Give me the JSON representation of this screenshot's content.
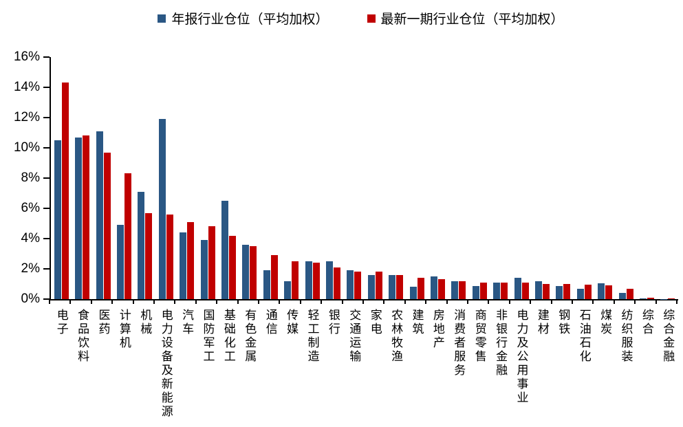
{
  "chart_data": {
    "type": "bar",
    "title": "",
    "categories": [
      "电子",
      "食品饮料",
      "医药",
      "计算机",
      "机械",
      "电力设备及新能源",
      "汽车",
      "国防军工",
      "基础化工",
      "有色金属",
      "通信",
      "传媒",
      "轻工制造",
      "银行",
      "交通运输",
      "家电",
      "农林牧渔",
      "建筑",
      "房地产",
      "消费者服务",
      "商贸零售",
      "非银行金融",
      "电力及公用事业",
      "建材",
      "钢铁",
      "石油石化",
      "煤炭",
      "纺织服装",
      "综合",
      "综合金融"
    ],
    "series": [
      {
        "name": "年报行业仓位（平均加权）",
        "color": "#2A5784",
        "values": [
          10.5,
          10.7,
          11.1,
          4.9,
          7.1,
          11.9,
          4.4,
          3.9,
          6.5,
          3.6,
          1.9,
          1.2,
          2.5,
          2.5,
          1.9,
          1.6,
          1.6,
          0.8,
          1.5,
          1.2,
          0.85,
          1.1,
          1.4,
          1.2,
          0.85,
          0.7,
          1.05,
          0.4,
          0.03,
          0.02
        ]
      },
      {
        "name": "最新一期行业仓位（平均加权）",
        "color": "#C00000",
        "values": [
          14.3,
          10.8,
          9.7,
          8.3,
          5.7,
          5.6,
          5.1,
          4.8,
          4.2,
          3.5,
          2.9,
          2.5,
          2.4,
          2.1,
          1.8,
          1.8,
          1.6,
          1.4,
          1.3,
          1.2,
          1.1,
          1.1,
          1.1,
          1.0,
          1.0,
          0.95,
          0.9,
          0.7,
          0.08,
          0.05
        ]
      }
    ],
    "ylim": [
      0,
      16
    ],
    "y_tick_step": 2,
    "y_tick_labels": [
      "0%",
      "2%",
      "4%",
      "6%",
      "8%",
      "10%",
      "12%",
      "14%",
      "16%"
    ],
    "xlabel": "",
    "ylabel": "",
    "grid": false,
    "legend_position": "top-center",
    "axis_color": "#000000",
    "background_color": "#FFFFFF"
  }
}
